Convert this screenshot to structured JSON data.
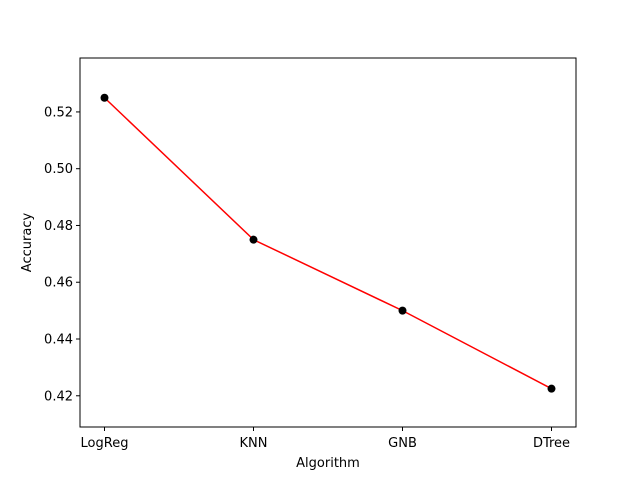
{
  "chart_data": {
    "type": "line",
    "title": "",
    "xlabel": "Algorithm",
    "ylabel": "Accuracy",
    "categories": [
      "LogReg",
      "KNN",
      "GNB",
      "DTree"
    ],
    "series": [
      {
        "values": [
          0.525,
          0.475,
          0.45,
          0.4225
        ],
        "line_color": "#ff0000",
        "marker_color": "#000000"
      }
    ],
    "ylim": [
      0.409,
      0.539
    ],
    "yticks": [
      0.42,
      0.44,
      0.46,
      0.48,
      0.5,
      0.52
    ],
    "ytick_labels": [
      "0.42",
      "0.44",
      "0.46",
      "0.48",
      "0.50",
      "0.52"
    ],
    "grid": false,
    "legend": "none"
  }
}
